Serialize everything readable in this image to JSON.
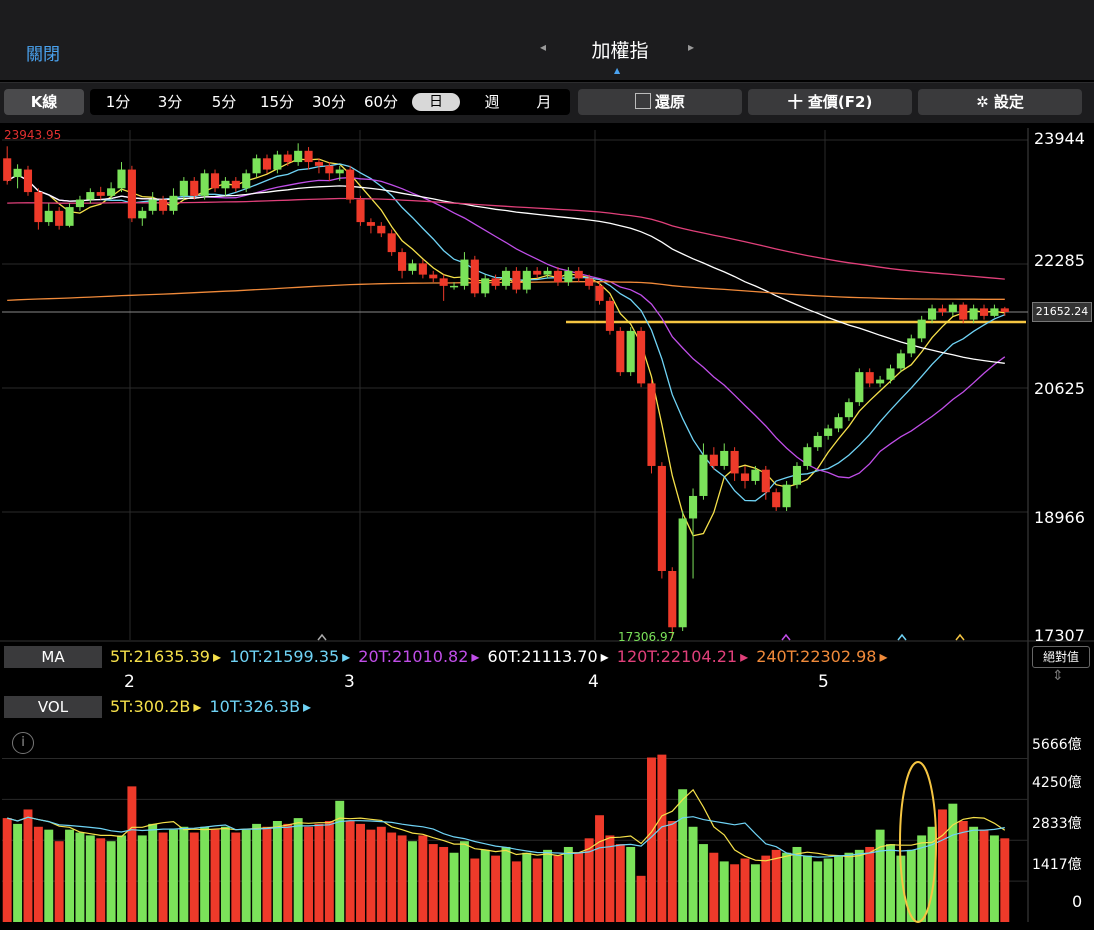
{
  "header": {
    "close_label": "關閉",
    "title": "加權指",
    "prev_icon": "◂",
    "next_icon": "▸"
  },
  "toolbar": {
    "k_label": "K線",
    "intervals": [
      "1分",
      "3分",
      "5分",
      "15分",
      "30分",
      "60分",
      "日",
      "週",
      "月"
    ],
    "selected_interval": "日",
    "restore_label": "還原",
    "query_label": "十 查價(F2)",
    "settings_label": "設定"
  },
  "price_chart": {
    "high_label": "23943.95",
    "low_label": "17306.97",
    "axis_ticks": [
      "23944",
      "22285",
      "20625",
      "18966",
      "17307"
    ],
    "current_price": "21652.24",
    "x_labels": [
      "2",
      "3",
      "4",
      "5"
    ]
  },
  "ma": {
    "label": "MA",
    "values": [
      "5T:21635.39",
      "10T:21599.35",
      "20T:21010.82",
      "60T:21113.70",
      "120T:22104.21",
      "240T:22302.98"
    ],
    "colors": [
      "#f5e04a",
      "#6fd3f5",
      "#c04ee8",
      "#ffffff",
      "#e0407a",
      "#f08a3a"
    ],
    "abs_label": "絕對值"
  },
  "volume": {
    "label": "VOL",
    "values": [
      "5T:300.2B",
      "10T:326.3B"
    ],
    "colors": [
      "#f5e04a",
      "#6fd3f5"
    ],
    "axis_ticks": [
      "5666億",
      "4250億",
      "2833億",
      "1417億",
      "0"
    ]
  },
  "chart_data": {
    "type": "candlestick",
    "title": "加權指",
    "ylim": [
      17307,
      23944
    ],
    "candles": [
      [
        23700,
        23400,
        23860,
        23350,
        0
      ],
      [
        23450,
        23560,
        23620,
        23300,
        1
      ],
      [
        23550,
        23250,
        23600,
        23200,
        0
      ],
      [
        23250,
        22850,
        23300,
        22750,
        0
      ],
      [
        22850,
        23000,
        23100,
        22800,
        1
      ],
      [
        23000,
        22800,
        23050,
        22750,
        0
      ],
      [
        22800,
        23050,
        23100,
        22780,
        1
      ],
      [
        23050,
        23150,
        23200,
        23000,
        1
      ],
      [
        23150,
        23250,
        23300,
        23100,
        1
      ],
      [
        23250,
        23200,
        23320,
        23150,
        0
      ],
      [
        23200,
        23300,
        23380,
        23150,
        1
      ],
      [
        23300,
        23550,
        23650,
        23250,
        1
      ],
      [
        23550,
        22900,
        23600,
        22850,
        0
      ],
      [
        22900,
        23000,
        23050,
        22800,
        1
      ],
      [
        23000,
        23150,
        23250,
        22950,
        1
      ],
      [
        23150,
        23000,
        23200,
        22950,
        0
      ],
      [
        23000,
        23200,
        23300,
        22950,
        1
      ],
      [
        23200,
        23400,
        23450,
        23150,
        1
      ],
      [
        23400,
        23200,
        23450,
        23150,
        0
      ],
      [
        23200,
        23500,
        23550,
        23150,
        1
      ],
      [
        23500,
        23300,
        23550,
        23250,
        0
      ],
      [
        23300,
        23400,
        23450,
        23200,
        1
      ],
      [
        23400,
        23300,
        23450,
        23250,
        0
      ],
      [
        23300,
        23500,
        23550,
        23250,
        1
      ],
      [
        23500,
        23700,
        23750,
        23450,
        1
      ],
      [
        23700,
        23550,
        23750,
        23500,
        0
      ],
      [
        23550,
        23750,
        23800,
        23500,
        1
      ],
      [
        23750,
        23650,
        23800,
        23600,
        0
      ],
      [
        23650,
        23800,
        23900,
        23600,
        1
      ],
      [
        23800,
        23650,
        23850,
        23550,
        0
      ],
      [
        23650,
        23600,
        23700,
        23500,
        0
      ],
      [
        23600,
        23500,
        23650,
        23400,
        0
      ],
      [
        23500,
        23550,
        23600,
        23400,
        1
      ],
      [
        23550,
        23150,
        23600,
        23100,
        0
      ],
      [
        23150,
        22850,
        23200,
        22800,
        0
      ],
      [
        22850,
        22800,
        22900,
        22700,
        0
      ],
      [
        22800,
        22700,
        22850,
        22650,
        0
      ],
      [
        22700,
        22450,
        22750,
        22400,
        0
      ],
      [
        22450,
        22200,
        22500,
        22100,
        0
      ],
      [
        22200,
        22300,
        22350,
        22150,
        1
      ],
      [
        22300,
        22150,
        22350,
        22100,
        0
      ],
      [
        22150,
        22100,
        22200,
        22050,
        0
      ],
      [
        22100,
        22000,
        22150,
        21800,
        0
      ],
      [
        22000,
        22000,
        22050,
        21950,
        1
      ],
      [
        22000,
        22350,
        22450,
        21950,
        1
      ],
      [
        22350,
        21900,
        22400,
        21850,
        0
      ],
      [
        21900,
        22100,
        22150,
        21850,
        1
      ],
      [
        22100,
        22000,
        22150,
        21950,
        0
      ],
      [
        22000,
        22200,
        22250,
        21950,
        1
      ],
      [
        22200,
        21950,
        22250,
        21900,
        0
      ],
      [
        21950,
        22200,
        22250,
        21900,
        1
      ],
      [
        22200,
        22150,
        22250,
        22100,
        0
      ],
      [
        22150,
        22200,
        22250,
        22100,
        1
      ],
      [
        22200,
        22050,
        22250,
        22000,
        0
      ],
      [
        22050,
        22200,
        22250,
        22000,
        1
      ],
      [
        22200,
        22100,
        22250,
        22050,
        0
      ],
      [
        22100,
        22000,
        22150,
        21950,
        0
      ],
      [
        22000,
        21800,
        22050,
        21750,
        0
      ],
      [
        21800,
        21400,
        21850,
        21350,
        0
      ],
      [
        21400,
        20850,
        21450,
        20800,
        0
      ],
      [
        20850,
        21400,
        21450,
        20800,
        1
      ],
      [
        21400,
        20700,
        21450,
        20650,
        0
      ],
      [
        20700,
        19600,
        20750,
        19500,
        0
      ],
      [
        19600,
        18200,
        19650,
        18100,
        0
      ],
      [
        18200,
        17450,
        18250,
        17307,
        0
      ],
      [
        17450,
        18900,
        19000,
        17400,
        1
      ],
      [
        18900,
        19200,
        19300,
        18100,
        1
      ],
      [
        19200,
        19750,
        19900,
        19150,
        1
      ],
      [
        19750,
        19600,
        19850,
        19550,
        0
      ],
      [
        19600,
        19800,
        19900,
        19550,
        1
      ],
      [
        19800,
        19500,
        19850,
        19400,
        0
      ],
      [
        19500,
        19400,
        19600,
        19300,
        0
      ],
      [
        19400,
        19550,
        19600,
        19350,
        1
      ],
      [
        19550,
        19250,
        19600,
        19150,
        0
      ],
      [
        19250,
        19050,
        19300,
        19000,
        0
      ],
      [
        19050,
        19350,
        19400,
        19000,
        1
      ],
      [
        19350,
        19600,
        19650,
        19300,
        1
      ],
      [
        19600,
        19850,
        19900,
        19550,
        1
      ],
      [
        19850,
        20000,
        20050,
        19800,
        1
      ],
      [
        20000,
        20100,
        20150,
        19950,
        1
      ],
      [
        20100,
        20250,
        20300,
        20050,
        1
      ],
      [
        20250,
        20450,
        20500,
        20200,
        1
      ],
      [
        20450,
        20850,
        20900,
        20400,
        1
      ],
      [
        20850,
        20700,
        20900,
        20650,
        0
      ],
      [
        20700,
        20750,
        20800,
        20650,
        1
      ],
      [
        20750,
        20900,
        20950,
        20700,
        1
      ],
      [
        20900,
        21100,
        21150,
        20850,
        1
      ],
      [
        21100,
        21300,
        21350,
        21050,
        1
      ],
      [
        21300,
        21550,
        21600,
        21250,
        1
      ],
      [
        21550,
        21700,
        21750,
        21500,
        1
      ],
      [
        21700,
        21650,
        21750,
        21600,
        0
      ],
      [
        21650,
        21750,
        21780,
        21600,
        1
      ],
      [
        21750,
        21550,
        21780,
        21500,
        0
      ],
      [
        21550,
        21700,
        21750,
        21500,
        1
      ],
      [
        21700,
        21600,
        21750,
        21550,
        0
      ],
      [
        21600,
        21700,
        21750,
        21580,
        1
      ],
      [
        21700,
        21652,
        21720,
        21600,
        0
      ]
    ],
    "volume_ylim": [
      0,
      7000
    ],
    "volumes": [
      3600,
      3400,
      3900,
      3300,
      3200,
      2800,
      3200,
      3100,
      3000,
      2900,
      2800,
      3000,
      4700,
      3000,
      3400,
      3100,
      3200,
      3300,
      3100,
      3300,
      3200,
      3300,
      3100,
      3200,
      3400,
      3300,
      3500,
      3400,
      3600,
      3300,
      3400,
      3500,
      4200,
      3500,
      3400,
      3200,
      3300,
      3100,
      3000,
      2800,
      3000,
      2700,
      2600,
      2400,
      2800,
      2200,
      2500,
      2300,
      2600,
      2100,
      2400,
      2200,
      2500,
      2300,
      2600,
      2400,
      2900,
      3700,
      3000,
      2700,
      2600,
      1600,
      5700,
      5800,
      3500,
      4600,
      3300,
      2700,
      2400,
      2100,
      2000,
      2200,
      2000,
      2300,
      2500,
      2400,
      2600,
      2300,
      2100,
      2200,
      2300,
      2400,
      2500,
      2600,
      3200,
      2700,
      2300,
      2500,
      3000,
      3300,
      3900,
      4100,
      3500,
      3300,
      3200,
      3000,
      2900
    ],
    "ma_lines": {
      "5T": "#f5e04a",
      "10T": "#6fd3f5",
      "20T": "#c04ee8",
      "60T": "#ffffff",
      "120T": "#e0407a",
      "240T": "#f08a3a"
    }
  }
}
